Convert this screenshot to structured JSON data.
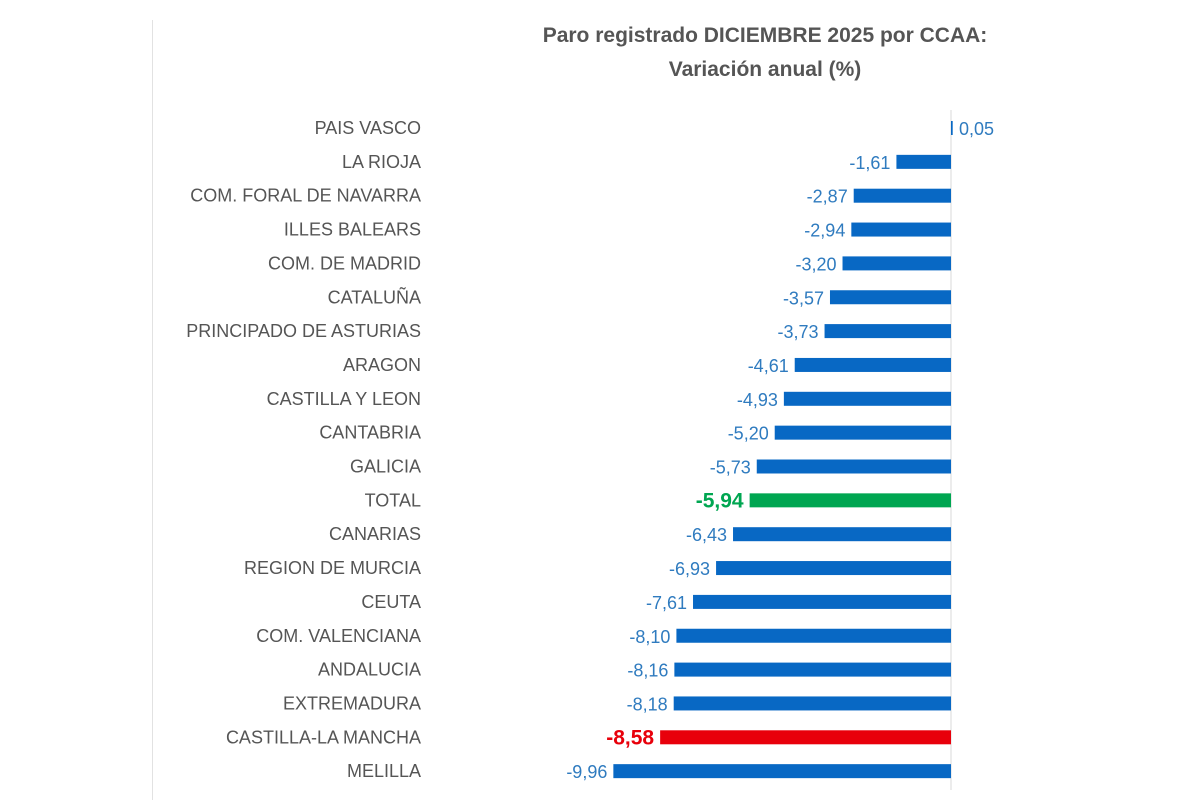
{
  "chart_data": {
    "type": "bar",
    "orientation": "horizontal",
    "title": "Paro registrado DICIEMBRE 2025 por CCAA:",
    "subtitle": "Variación anual (%)",
    "xlabel": "",
    "ylabel": "",
    "xlim": [
      -10,
      0.5
    ],
    "grid": false,
    "categories": [
      "PAIS VASCO",
      "LA RIOJA",
      "COM. FORAL DE NAVARRA",
      "ILLES BALEARS",
      "COM. DE MADRID",
      "CATALUÑA",
      "PRINCIPADO DE ASTURIAS",
      "ARAGON",
      "CASTILLA Y LEON",
      "CANTABRIA",
      "GALICIA",
      "TOTAL",
      "CANARIAS",
      "REGION DE MURCIA",
      "CEUTA",
      "COM. VALENCIANA",
      "ANDALUCIA",
      "EXTREMADURA",
      "CASTILLA-LA MANCHA",
      "MELILLA"
    ],
    "values": [
      0.05,
      -1.61,
      -2.87,
      -2.94,
      -3.2,
      -3.57,
      -3.73,
      -4.61,
      -4.93,
      -5.2,
      -5.73,
      -5.94,
      -6.43,
      -6.93,
      -7.61,
      -8.1,
      -8.16,
      -8.18,
      -8.58,
      -9.96
    ],
    "value_labels": [
      "0,05",
      "-1,61",
      "-2,87",
      "-2,94",
      "-3,20",
      "-3,57",
      "-3,73",
      "-4,61",
      "-4,93",
      "-5,20",
      "-5,73",
      "-5,94",
      "-6,43",
      "-6,93",
      "-7,61",
      "-8,10",
      "-8,16",
      "-8,18",
      "-8,58",
      "-9,96"
    ],
    "colors": {
      "default": "#0868c4",
      "TOTAL": "#00a651",
      "CASTILLA-LA MANCHA": "#e8000b",
      "label": "#2f7bbf",
      "category_label": "#555555"
    }
  }
}
